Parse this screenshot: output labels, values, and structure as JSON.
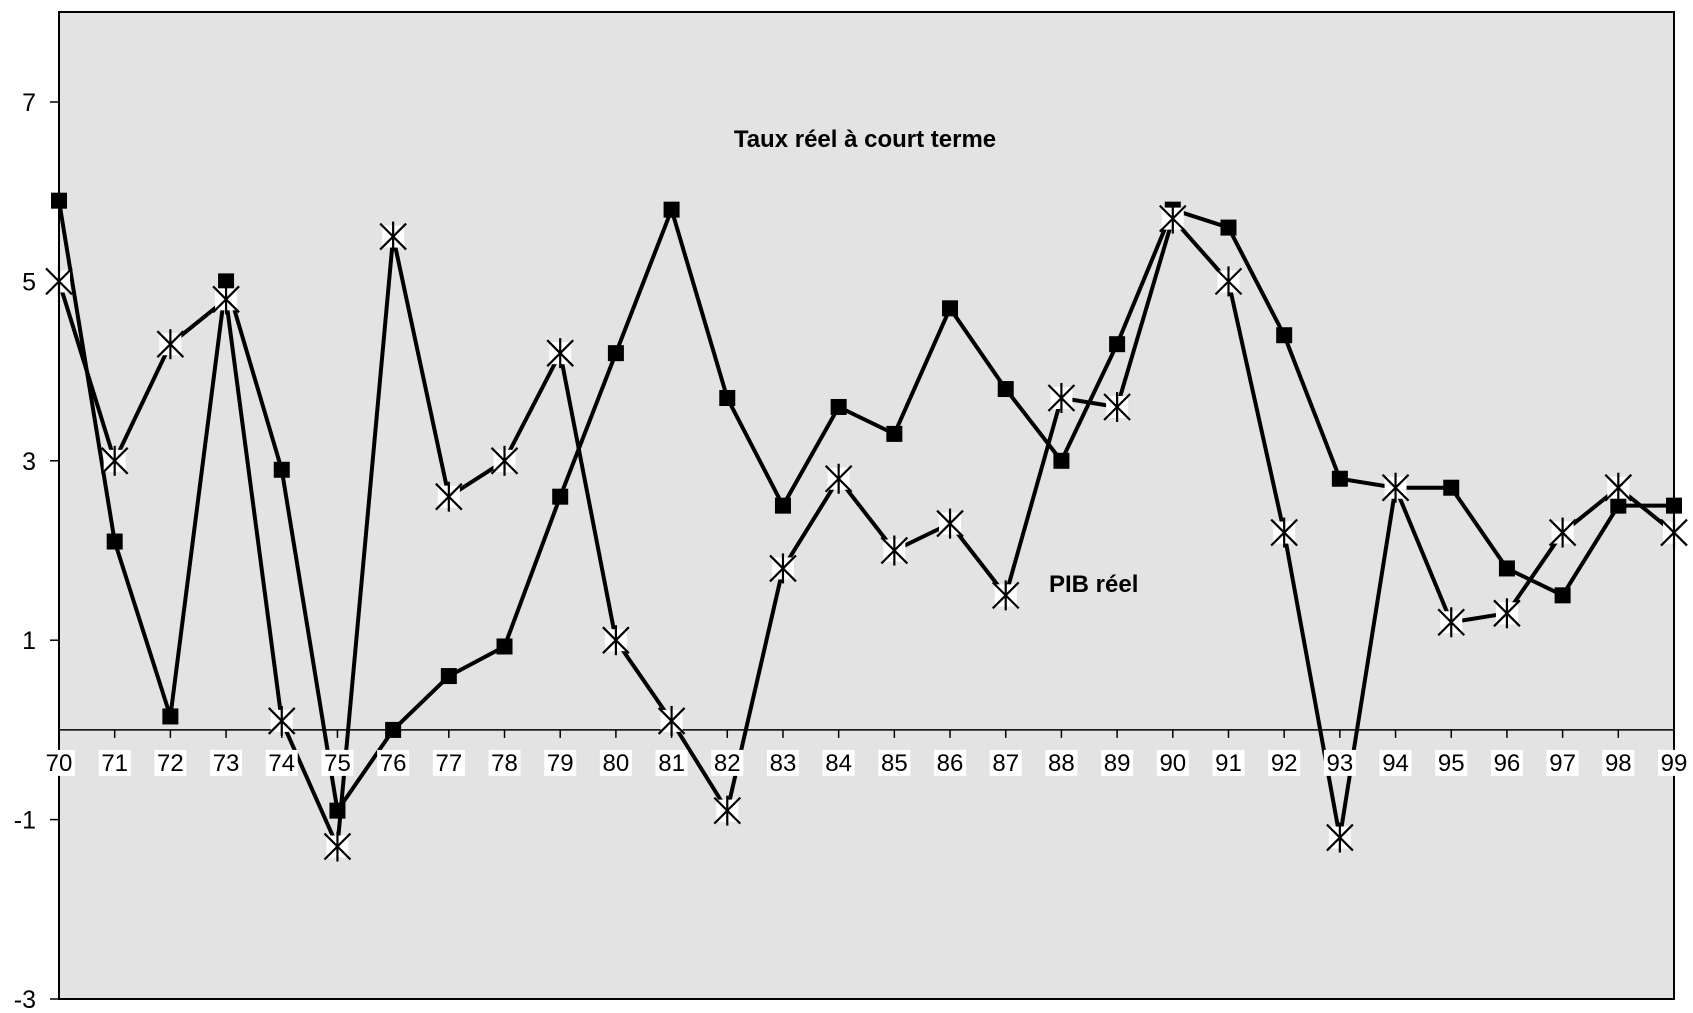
{
  "chart_data": {
    "type": "line",
    "title": "",
    "xlabel": "",
    "ylabel": "",
    "ylim": [
      -3,
      9
    ],
    "yticks": [
      "-3",
      "-1",
      "1",
      "3",
      "5",
      "7"
    ],
    "categories": [
      "70",
      "71",
      "72",
      "73",
      "74",
      "75",
      "76",
      "77",
      "78",
      "79",
      "80",
      "81",
      "82",
      "83",
      "84",
      "85",
      "86",
      "87",
      "88",
      "89",
      "90",
      "91",
      "92",
      "93",
      "94",
      "95",
      "96",
      "97",
      "98",
      "99"
    ],
    "grid": false,
    "plot_background": "#e3e3e3",
    "line_color": "#000000",
    "series": [
      {
        "name": "Taux réel à court terme",
        "marker": "square",
        "values": [
          5.9,
          2.1,
          0.15,
          5.0,
          2.9,
          -0.9,
          0.0,
          0.6,
          0.93,
          2.6,
          4.2,
          5.8,
          3.7,
          2.5,
          3.6,
          3.3,
          4.7,
          3.8,
          3.0,
          4.3,
          5.8,
          5.6,
          4.4,
          2.8,
          2.7,
          2.7,
          1.8,
          1.5,
          2.5,
          2.5
        ]
      },
      {
        "name": "PIB réel",
        "marker": "asterisk",
        "values": [
          5.0,
          3.0,
          4.3,
          4.8,
          0.1,
          -1.3,
          5.5,
          2.6,
          3.0,
          4.2,
          1.0,
          0.1,
          -0.9,
          1.8,
          2.8,
          2.0,
          2.3,
          1.5,
          3.7,
          3.6,
          5.7,
          5.0,
          2.2,
          -1.2,
          2.7,
          1.2,
          1.3,
          2.2,
          2.7,
          2.2
        ]
      }
    ],
    "annotations": [
      {
        "text": "Taux réel à court terme",
        "series": 0
      },
      {
        "text": "PIB réel",
        "series": 1
      }
    ]
  }
}
